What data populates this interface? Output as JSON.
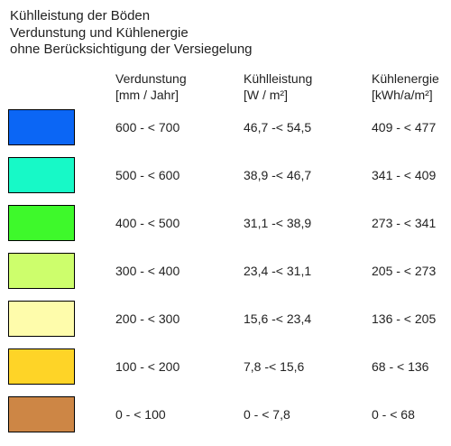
{
  "title": {
    "lines": [
      "Kühlleistung der Böden",
      "Verdunstung und Kühlenergie",
      "ohne Berücksichtigung der Versiegelung"
    ]
  },
  "columns": [
    {
      "label": "Verdunstung",
      "unit": "[mm / Jahr]"
    },
    {
      "label": "Kühlleistung",
      "unit": "[W / m²]"
    },
    {
      "label": "Kühlenergie",
      "unit": "[kWh/a/m²]"
    }
  ],
  "rows": [
    {
      "color": "#0b66f5",
      "verdunstung": "600 - < 700",
      "kuehlleistung": "46,7 -< 54,5",
      "kuehlenergie": "409 - < 477"
    },
    {
      "color": "#17f9c7",
      "verdunstung": "500 - < 600",
      "kuehlleistung": "38,9 -< 46,7",
      "kuehlenergie": "341 - < 409"
    },
    {
      "color": "#3ef92b",
      "verdunstung": "400 - < 500",
      "kuehlleistung": "31,1 -< 38,9",
      "kuehlenergie": "273 - < 341"
    },
    {
      "color": "#cdfe6c",
      "verdunstung": "300 - < 400",
      "kuehlleistung": "23,4 -< 31,1",
      "kuehlenergie": "205 - < 273"
    },
    {
      "color": "#fefcab",
      "verdunstung": "200 - < 300",
      "kuehlleistung": "15,6 -< 23,4",
      "kuehlenergie": "136 - < 205"
    },
    {
      "color": "#fed427",
      "verdunstung": "100 - < 200",
      "kuehlleistung": "7,8 -< 15,6",
      "kuehlenergie": "68 - < 136"
    },
    {
      "color": "#cd8645",
      "verdunstung": "0 - < 100",
      "kuehlleistung": "0 - < 7,8",
      "kuehlenergie": "0 - < 68"
    }
  ]
}
